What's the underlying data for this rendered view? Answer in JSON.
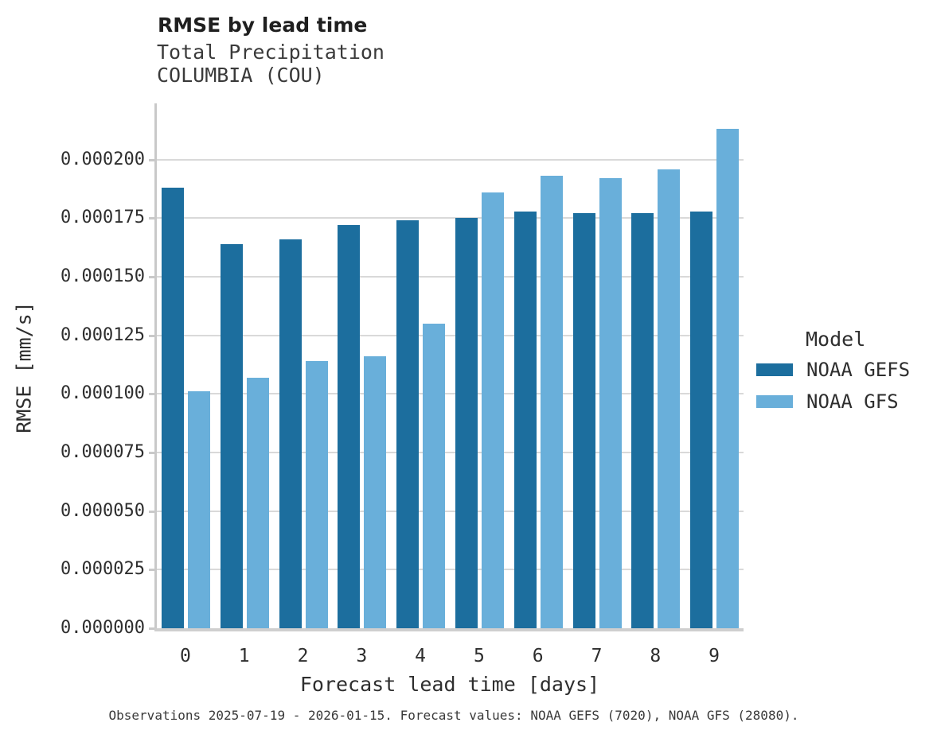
{
  "header": {
    "title": "RMSE by lead time",
    "subtitle1": "Total Precipitation",
    "subtitle2": "COLUMBIA (COU)"
  },
  "chart_data": {
    "type": "bar",
    "title": "RMSE by lead time",
    "subtitle": [
      "Total Precipitation",
      "COLUMBIA (COU)"
    ],
    "xlabel": "Forecast lead time [days]",
    "ylabel": "RMSE [mm/s]",
    "categories": [
      "0",
      "1",
      "2",
      "3",
      "4",
      "5",
      "6",
      "7",
      "8",
      "9"
    ],
    "series": [
      {
        "name": "NOAA GEFS",
        "color": "#1C6E9E",
        "values": [
          0.000188,
          0.000164,
          0.000166,
          0.000172,
          0.000174,
          0.000175,
          0.000178,
          0.000177,
          0.000177,
          0.000178
        ]
      },
      {
        "name": "NOAA GFS",
        "color": "#69AFDA",
        "values": [
          0.000101,
          0.000107,
          0.000114,
          0.000116,
          0.00013,
          0.000186,
          0.000193,
          0.000192,
          0.000196,
          0.000213
        ]
      }
    ],
    "ylim": [
      0,
      0.000224
    ],
    "ytick_step": 2.5e-05,
    "ytick_labels": [
      "0.000000",
      "0.000025",
      "0.000050",
      "0.000075",
      "0.000100",
      "0.000125",
      "0.000150",
      "0.000175",
      "0.000200"
    ],
    "grid": "horizontal",
    "legend": {
      "title": "Model",
      "position": "right"
    }
  },
  "footer": {
    "caption": "Observations 2025-07-19 - 2026-01-15. Forecast values: NOAA GEFS (7020), NOAA GFS (28080)."
  }
}
